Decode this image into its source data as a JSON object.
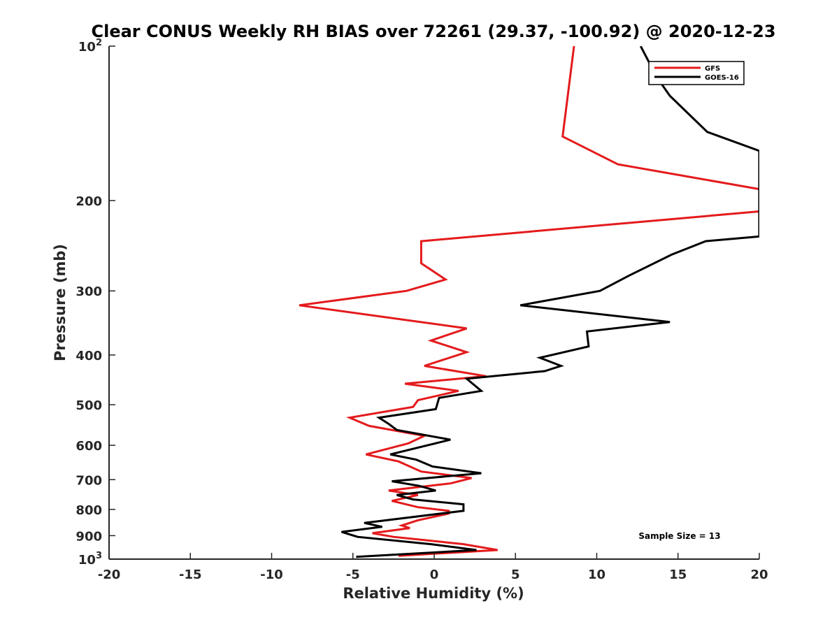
{
  "chart_data": {
    "type": "line",
    "title": "Clear CONUS Weekly RH BIAS over 72261 (29.37, -100.92) @ 2020-12-23",
    "xlabel": "Relative Humidity (%)",
    "ylabel": "Pressure (mb)",
    "xlim": [
      -20,
      20
    ],
    "ylim": [
      100,
      1000
    ],
    "y_scale": "log",
    "y_reversed": true,
    "x_ticks": [
      "-20",
      "-15",
      "-10",
      "-5",
      "0",
      "5",
      "10",
      "15",
      "20"
    ],
    "y_ticks": [
      {
        "value": 100,
        "base": "10",
        "exp": "2"
      },
      {
        "value": 200,
        "label": "200"
      },
      {
        "value": 300,
        "label": "300"
      },
      {
        "value": 400,
        "label": "400"
      },
      {
        "value": 500,
        "label": "500"
      },
      {
        "value": 600,
        "label": "600"
      },
      {
        "value": 700,
        "label": "700"
      },
      {
        "value": 800,
        "label": "800"
      },
      {
        "value": 900,
        "label": "900"
      },
      {
        "value": 1000,
        "base": "10",
        "exp": "3"
      }
    ],
    "grid": false,
    "legend_position": "top-right",
    "annotation": "Sample Size = 13",
    "series": [
      {
        "name": "GFS",
        "color": "#e41a1c",
        "x": [
          8.6,
          7.9,
          11.3,
          20,
          20,
          20,
          -0.8,
          -0.8,
          0.7,
          -1.7,
          -8.3,
          2.0,
          -0.2,
          2.0,
          -0.6,
          3.2,
          -1.8,
          1.5,
          -1.0,
          -1.3,
          -5.2,
          -4.0,
          -0.6,
          -1.6,
          -4.2,
          -2.2,
          -0.8,
          2.3,
          1.0,
          -2.8,
          -1.0,
          -2.6,
          -1.0,
          0.9,
          0.9,
          -1.0,
          -2.0,
          -1.5,
          -3.8,
          -2.5,
          1.8,
          3.9,
          -2.2
        ],
        "y": [
          100,
          150,
          170,
          190,
          200,
          210,
          240,
          265,
          285,
          300,
          320,
          355,
          375,
          395,
          420,
          440,
          455,
          470,
          490,
          505,
          530,
          550,
          575,
          595,
          625,
          645,
          675,
          695,
          712,
          735,
          750,
          770,
          792,
          805,
          815,
          840,
          860,
          870,
          890,
          905,
          935,
          960,
          985
        ]
      },
      {
        "name": "GOES-16",
        "color": "#000000",
        "x": [
          12.7,
          13.7,
          14.5,
          16.8,
          20,
          20,
          16.7,
          14.6,
          12.0,
          10.2,
          5.3,
          14.5,
          9.4,
          9.5,
          6.5,
          7.8,
          6.8,
          2.0,
          2.9,
          0.3,
          0.1,
          -3.4,
          -2.8,
          -2.3,
          1.0,
          -2.7,
          -1.1,
          -0.1,
          2.9,
          -2.6,
          -0.9,
          0.1,
          -2.3,
          -1.3,
          1.8,
          1.8,
          -4.3,
          -3.2,
          -5.7,
          -4.7,
          -0.2,
          2.6,
          -4.8
        ],
        "y": [
          100,
          115,
          125,
          147,
          160,
          235,
          240,
          255,
          280,
          300,
          320,
          345,
          360,
          385,
          405,
          420,
          430,
          445,
          470,
          485,
          510,
          530,
          545,
          560,
          585,
          625,
          640,
          660,
          680,
          705,
          720,
          735,
          750,
          765,
          782,
          805,
          850,
          865,
          885,
          905,
          935,
          960,
          990
        ]
      }
    ],
    "legend": [
      {
        "name": "GFS",
        "color": "#e41a1c"
      },
      {
        "name": "GOES-16",
        "color": "#000000"
      }
    ]
  }
}
